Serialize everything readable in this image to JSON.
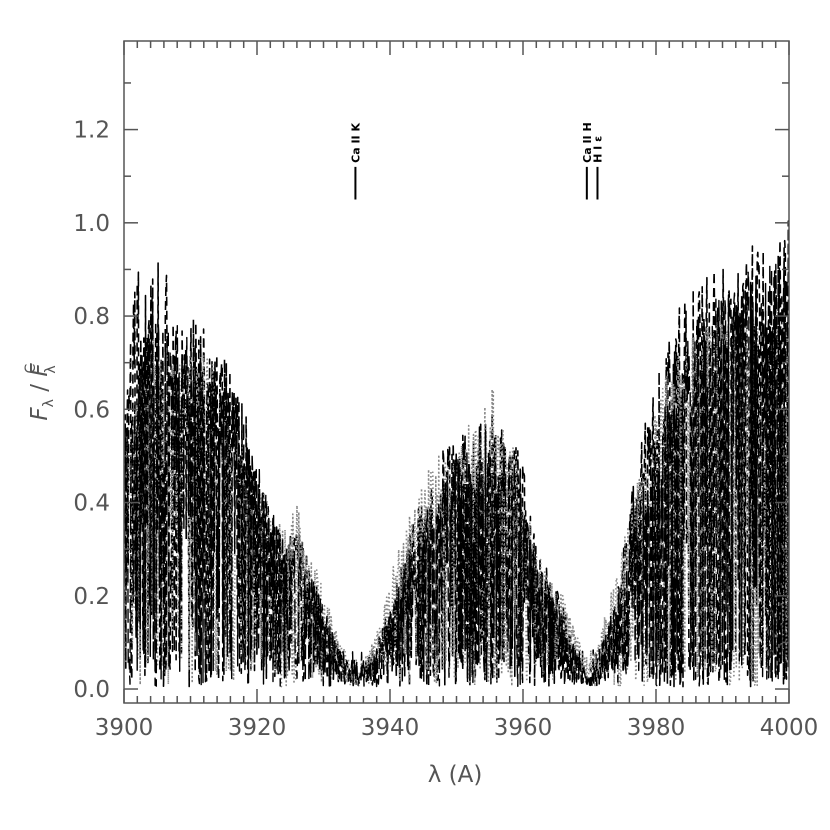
{
  "chart_data": {
    "type": "line",
    "xlabel": "λ (A)",
    "ylabel": "F_λ / F^C_λ",
    "xlim": [
      3900,
      4000
    ],
    "ylim": [
      -0.03,
      1.39
    ],
    "x_ticks": [
      3900,
      3920,
      3940,
      3960,
      3980,
      4000
    ],
    "x_tick_labels": [
      "3900",
      "3920",
      "3940",
      "3960",
      "3980",
      "4000"
    ],
    "y_ticks": [
      0.0,
      0.2,
      0.4,
      0.6,
      0.8,
      1.0,
      1.2
    ],
    "y_tick_labels": [
      "0.0",
      "0.2",
      "0.4",
      "0.6",
      "0.8",
      "1.0",
      "1.2"
    ],
    "grid": false,
    "line_ids": [
      {
        "label": "Ca II K",
        "x": 3934.8,
        "y_range": [
          1.05,
          1.12
        ]
      },
      {
        "label": "Ca II H",
        "x": 3969.6,
        "y_range": [
          1.05,
          1.12
        ]
      },
      {
        "label": "H I ε",
        "x": 3971.2,
        "y_range": [
          1.05,
          1.12
        ]
      }
    ],
    "series": [
      {
        "style": "dashed",
        "color": "#000000",
        "envelope_x": [
          3900,
          3902,
          3904,
          3906,
          3908,
          3910,
          3912,
          3914,
          3916,
          3918,
          3920,
          3922,
          3924,
          3926,
          3928,
          3930,
          3932,
          3934,
          3935,
          3936,
          3938,
          3940,
          3942,
          3944,
          3946,
          3948,
          3950,
          3952,
          3954,
          3956,
          3958,
          3960,
          3962,
          3964,
          3966,
          3968,
          3970,
          3972,
          3974,
          3976,
          3978,
          3980,
          3982,
          3984,
          3986,
          3988,
          3990,
          3992,
          3994,
          3996,
          3998,
          4000
        ],
        "envelope_y": [
          0.6,
          0.93,
          0.92,
          0.94,
          0.75,
          0.8,
          0.78,
          0.73,
          0.7,
          0.62,
          0.45,
          0.4,
          0.32,
          0.36,
          0.28,
          0.16,
          0.1,
          0.05,
          0.02,
          0.05,
          0.1,
          0.18,
          0.3,
          0.38,
          0.44,
          0.52,
          0.56,
          0.58,
          0.6,
          0.59,
          0.55,
          0.5,
          0.3,
          0.25,
          0.18,
          0.08,
          0.02,
          0.08,
          0.2,
          0.4,
          0.55,
          0.66,
          0.76,
          0.84,
          0.88,
          0.9,
          0.91,
          0.93,
          0.95,
          0.96,
          0.97,
          1.01
        ]
      },
      {
        "style": "dotted",
        "color": "#888888",
        "envelope_x": [
          3900,
          3904,
          3908,
          3912,
          3916,
          3920,
          3924,
          3926,
          3928,
          3932,
          3935,
          3938,
          3942,
          3946,
          3950,
          3954,
          3955,
          3958,
          3962,
          3966,
          3970,
          3974,
          3978,
          3982,
          3986,
          3990,
          3994,
          3998,
          4000
        ],
        "envelope_y": [
          0.5,
          0.8,
          0.7,
          0.75,
          0.6,
          0.45,
          0.35,
          0.4,
          0.3,
          0.12,
          0.03,
          0.12,
          0.35,
          0.48,
          0.55,
          0.62,
          0.66,
          0.55,
          0.3,
          0.2,
          0.04,
          0.25,
          0.5,
          0.7,
          0.78,
          0.8,
          0.82,
          0.78,
          0.75
        ]
      },
      {
        "style": "long-dash",
        "color": "#000000",
        "envelope_x": [
          3900,
          3904,
          3908,
          3912,
          3916,
          3920,
          3924,
          3928,
          3932,
          3935,
          3938,
          3942,
          3946,
          3950,
          3954,
          3958,
          3962,
          3966,
          3970,
          3974,
          3978,
          3982,
          3986,
          3990,
          3994,
          3998,
          4000
        ],
        "envelope_y": [
          0.55,
          0.85,
          0.78,
          0.72,
          0.65,
          0.5,
          0.33,
          0.25,
          0.1,
          0.02,
          0.08,
          0.25,
          0.4,
          0.5,
          0.56,
          0.52,
          0.28,
          0.15,
          0.01,
          0.2,
          0.45,
          0.65,
          0.8,
          0.86,
          0.9,
          0.93,
          0.95
        ]
      }
    ]
  }
}
